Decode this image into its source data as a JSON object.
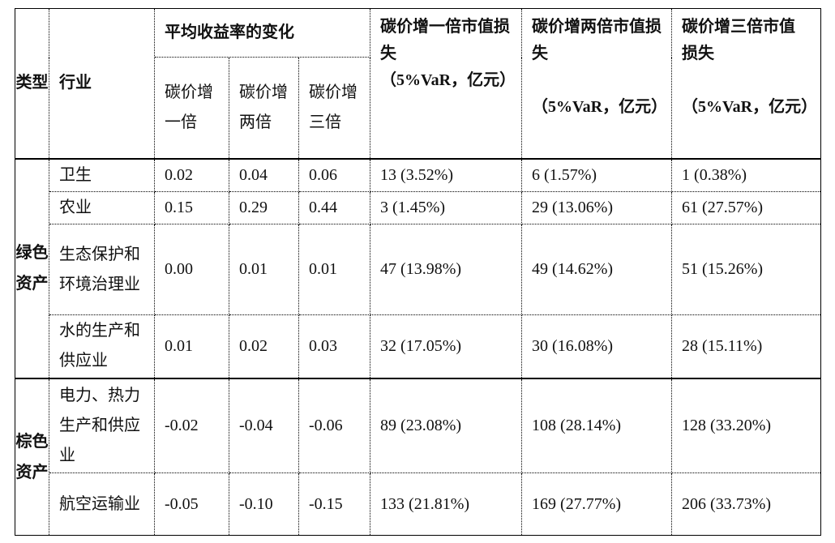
{
  "table": {
    "headers": {
      "type": "类型",
      "industry": "行业",
      "avg_return": "平均收益率的变化",
      "sub": [
        "碳价增一倍",
        "碳价增两倍",
        "碳价增三倍"
      ],
      "loss": [
        "碳价增一倍市值损失\n（5%VaR，亿元）",
        "碳价增两倍市值损失\n\n（5%VaR，亿元）",
        "碳价增三倍市值损失\n\n（5%VaR，亿元）"
      ]
    },
    "groups": [
      {
        "type": "绿色资产",
        "rows": [
          [
            "卫生",
            "0.02",
            "0.04",
            "0.06",
            "13 (3.52%)",
            "6 (1.57%)",
            "1 (0.38%)"
          ],
          [
            "农业",
            "0.15",
            "0.29",
            "0.44",
            "3 (1.45%)",
            "29 (13.06%)",
            "61 (27.57%)"
          ],
          [
            "生态保护和环境治理业",
            "0.00",
            "0.01",
            "0.01",
            "47 (13.98%)",
            "49 (14.62%)",
            "51 (15.26%)"
          ],
          [
            "水的生产和供应业",
            "0.01",
            "0.02",
            "0.03",
            "32 (17.05%)",
            "30 (16.08%)",
            "28 (15.11%)"
          ]
        ]
      },
      {
        "type": "棕色资产",
        "rows": [
          [
            "电力、热力生产和供应业",
            "-0.02",
            "-0.04",
            "-0.06",
            "89 (23.08%)",
            "108 (28.14%)",
            "128 (33.20%)"
          ],
          [
            "航空运输业",
            "-0.05",
            "-0.10",
            "-0.15",
            "133 (21.81%)",
            "169 (27.77%)",
            "206 (33.73%)"
          ]
        ]
      }
    ]
  }
}
